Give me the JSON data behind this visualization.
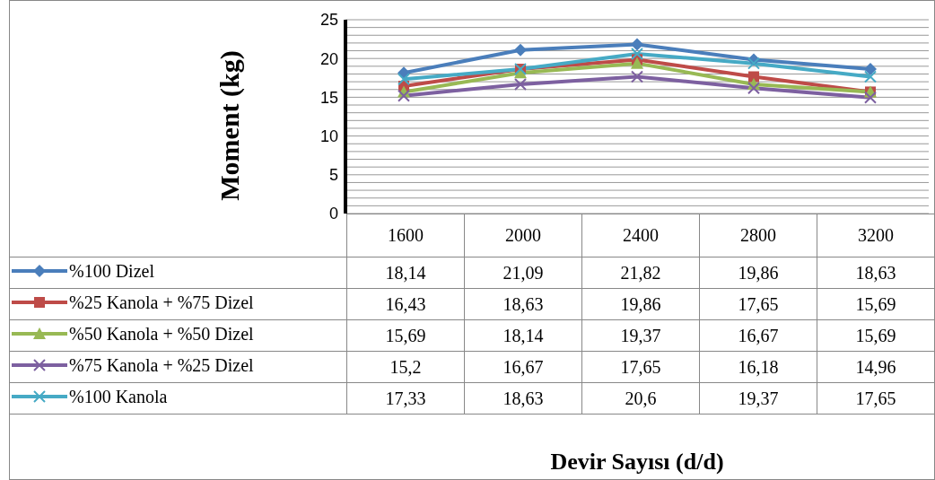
{
  "chart_data": {
    "type": "line",
    "annotations": [
      "Devir Sayısı (d/d)"
    ],
    "ylabel": "Moment (kg)",
    "categories": [
      "1600",
      "2000",
      "2400",
      "2800",
      "3200"
    ],
    "ylim": [
      0,
      25
    ],
    "yticks": [
      0,
      {
        "value": 1,
        "label": null
      },
      {
        "value": 2,
        "label": null
      },
      {
        "value": 3,
        "label": null
      },
      {
        "value": 4,
        "label": null
      },
      5,
      {
        "value": 6,
        "label": null
      },
      {
        "value": 7,
        "label": null
      },
      {
        "value": 8,
        "label": null
      },
      {
        "value": 9,
        "label": null
      },
      10,
      {
        "value": 11,
        "label": null
      },
      {
        "value": 12,
        "label": null
      },
      {
        "value": 13,
        "label": null
      },
      {
        "value": 14,
        "label": null
      },
      15,
      {
        "value": 16,
        "label": null
      },
      {
        "value": 17,
        "label": null
      },
      {
        "value": 18,
        "label": null
      },
      {
        "value": 19,
        "label": null
      },
      20,
      {
        "value": 21,
        "label": null
      },
      {
        "value": 22,
        "label": null
      },
      {
        "value": 23,
        "label": null
      },
      {
        "value": 24,
        "label": null
      },
      25
    ],
    "grid": "y",
    "legend": "bottom left",
    "series": [
      {
        "name": "%100 Dizel",
        "color": "#4a7ebb",
        "marker": "diamond",
        "values": [
          18.14,
          21.09,
          21.82,
          19.86,
          18.63
        ],
        "value_labels": [
          "18,14",
          "21,09",
          "21,82",
          "19,86",
          "18,63"
        ]
      },
      {
        "name": "%25 Kanola + %75 Dizel",
        "color": "#be4b48",
        "marker": "square",
        "values": [
          16.43,
          18.63,
          19.86,
          17.65,
          15.69
        ],
        "value_labels": [
          "16,43",
          "18,63",
          "19,86",
          "17,65",
          "15,69"
        ]
      },
      {
        "name": "%50 Kanola + %50 Dizel",
        "color": "#98b954",
        "marker": "triangle",
        "values": [
          15.69,
          18.14,
          19.37,
          16.67,
          15.69
        ],
        "value_labels": [
          "15,69",
          "18,14",
          "19,37",
          "16,67",
          "15,69"
        ]
      },
      {
        "name": "%75 Kanola + %25 Dizel",
        "color": "#7d60a0",
        "marker": "cross",
        "values": [
          15.2,
          16.67,
          17.65,
          16.18,
          14.96
        ],
        "value_labels": [
          "15,2",
          "16,67",
          "17,65",
          "16,18",
          "14,96"
        ]
      },
      {
        "name": "%100 Kanola",
        "color": "#46aac5",
        "marker": "cross",
        "values": [
          17.33,
          18.63,
          20.6,
          19.37,
          17.65
        ],
        "value_labels": [
          "17,33",
          "18,63",
          "20,6",
          "19,37",
          "17,65"
        ]
      }
    ]
  }
}
